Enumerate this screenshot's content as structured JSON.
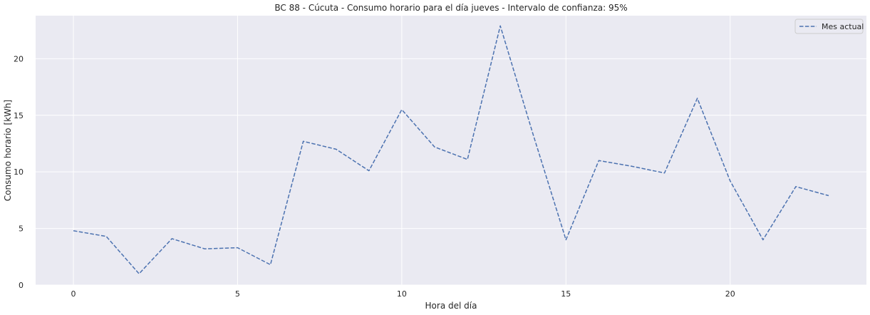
{
  "chart_data": {
    "type": "line",
    "title": "BC 88 - Cúcuta - Consumo horario para el día jueves - Intervalo de confianza: 95%",
    "xlabel": "Hora del día",
    "ylabel": "Consumo horario [kWh]",
    "xlim": [
      -1.15,
      24.15
    ],
    "ylim": [
      0,
      23.8
    ],
    "xticks": [
      0,
      5,
      10,
      15,
      20
    ],
    "yticks": [
      0,
      5,
      10,
      15,
      20
    ],
    "grid": true,
    "legend_position": "top-right",
    "series": [
      {
        "name": "Mes actual",
        "color": "#4c72b0",
        "line_style": "dashed",
        "x": [
          0,
          1,
          2,
          3,
          4,
          5,
          6,
          7,
          8,
          9,
          10,
          11,
          12,
          13,
          14,
          15,
          16,
          17,
          18,
          19,
          20,
          21,
          22,
          23
        ],
        "y": [
          4.8,
          4.3,
          1.0,
          4.1,
          3.2,
          3.3,
          1.8,
          12.7,
          12.0,
          10.1,
          15.5,
          12.2,
          11.1,
          22.9,
          13.3,
          4.0,
          11.0,
          10.5,
          9.9,
          16.5,
          9.2,
          4.0,
          8.7,
          7.9
        ]
      }
    ],
    "colors": {
      "plot_background": "#eaeaf2",
      "grid": "#ffffff",
      "text": "#262626"
    }
  }
}
